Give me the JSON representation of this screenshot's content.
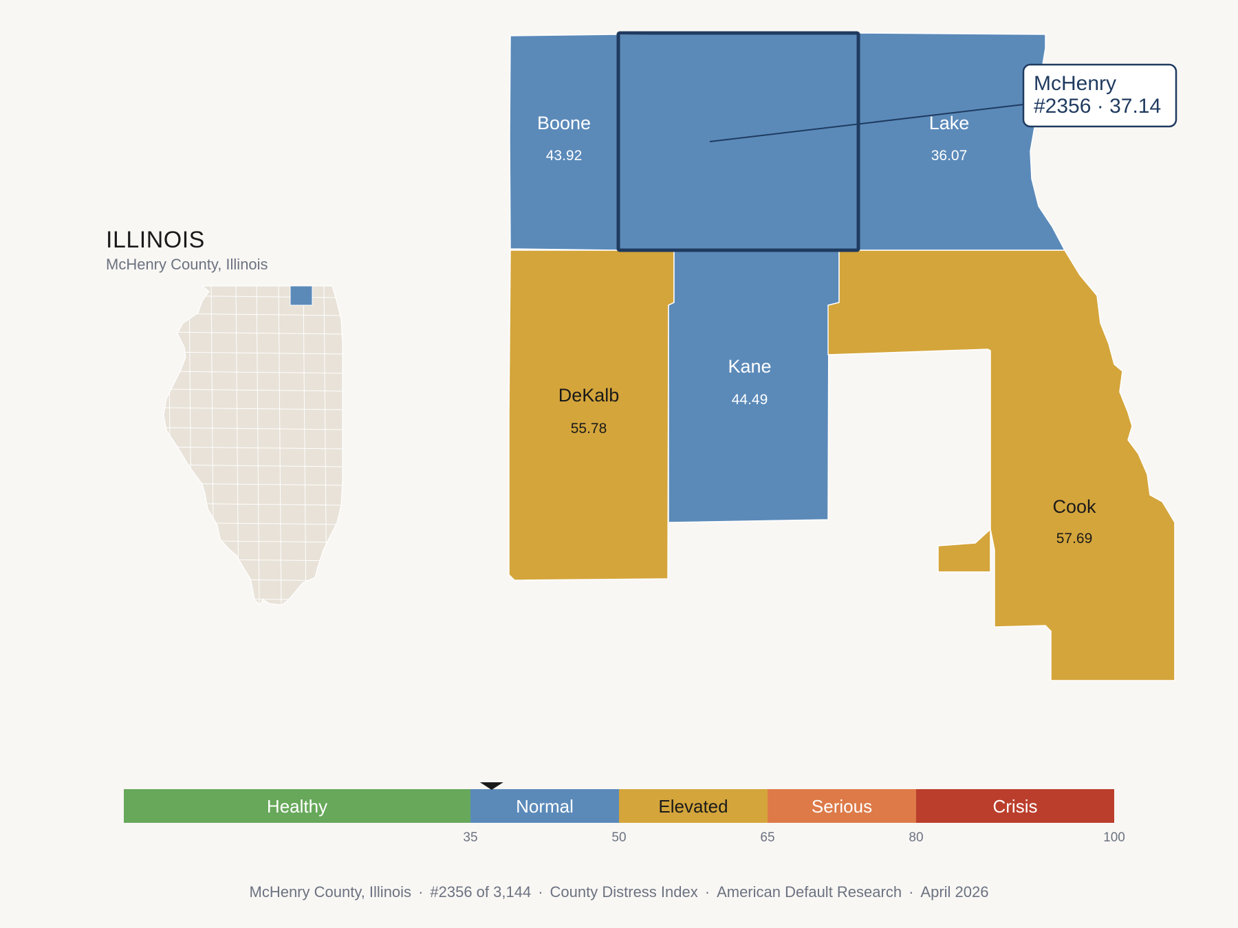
{
  "inset": {
    "state_title": "ILLINOIS",
    "subtitle": "McHenry County, Illinois",
    "state_fill": "#e8e2d8",
    "highlight_fill": "#5b8ab9"
  },
  "map": {
    "counties": [
      {
        "name": "Boone",
        "value": "43.92",
        "category": "Normal",
        "fill": "#5b8ab9"
      },
      {
        "name": "McHenry",
        "value": "37.14",
        "category": "Normal",
        "fill": "#5b8ab9",
        "selected": true
      },
      {
        "name": "Lake",
        "value": "36.07",
        "category": "Normal",
        "fill": "#5b8ab9"
      },
      {
        "name": "DeKalb",
        "value": "55.78",
        "category": "Elevated",
        "fill": "#d4a53b"
      },
      {
        "name": "Kane",
        "value": "44.49",
        "category": "Normal",
        "fill": "#5b8ab9"
      },
      {
        "name": "Cook",
        "value": "57.69",
        "category": "Elevated",
        "fill": "#d4a53b"
      }
    ],
    "callout": {
      "line1": "McHenry",
      "line2": "#2356 · 37.14"
    }
  },
  "legend": {
    "bands": [
      {
        "label": "Healthy",
        "from": 0,
        "to": 35,
        "color": "#67a85a"
      },
      {
        "label": "Normal",
        "from": 35,
        "to": 50,
        "color": "#5b8ab9"
      },
      {
        "label": "Elevated",
        "from": 50,
        "to": 65,
        "color": "#d4a53b"
      },
      {
        "label": "Serious",
        "from": 65,
        "to": 80,
        "color": "#dd7a48"
      },
      {
        "label": "Crisis",
        "from": 80,
        "to": 100,
        "color": "#bb3e2c"
      }
    ],
    "ticks": [
      "35",
      "50",
      "65",
      "80",
      "100"
    ],
    "marker_value": 37.14
  },
  "footer": {
    "county": "McHenry County, Illinois",
    "rank": "#2356 of 3,144",
    "index": "County Distress Index",
    "source": "American Default Research",
    "date": "April 2026"
  }
}
